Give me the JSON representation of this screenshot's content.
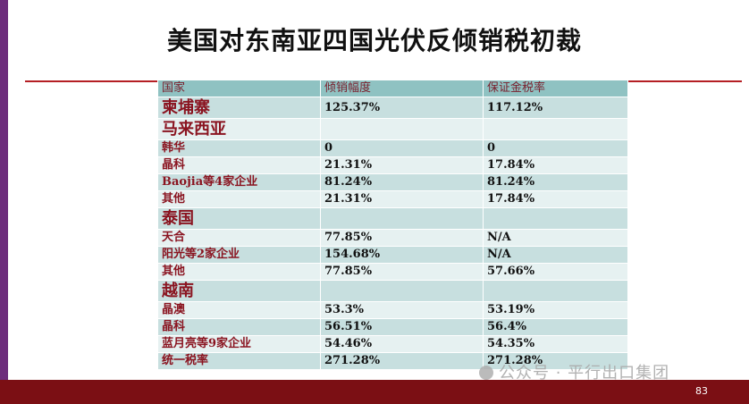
{
  "slide": {
    "title": "美国对东南亚四国光伏反倾销税初裁",
    "page_number": "83",
    "watermark": "公众号 · 平行出口集团"
  },
  "table": {
    "headers": [
      "国家",
      "倾销幅度",
      "保证金税率"
    ],
    "rows": [
      {
        "type": "country",
        "name": "柬埔寨",
        "margin": "125.37%",
        "rate": "117.12%"
      },
      {
        "type": "country",
        "name": "马来西亚",
        "margin": "",
        "rate": ""
      },
      {
        "type": "company",
        "name": "韩华",
        "margin": "0",
        "rate": "0"
      },
      {
        "type": "company",
        "name": "晶科",
        "margin": "21.31%",
        "rate": "17.84%"
      },
      {
        "type": "company",
        "name": "Baojia等4家企业",
        "margin": "81.24%",
        "rate": "81.24%"
      },
      {
        "type": "company",
        "name": "其他",
        "margin": "21.31%",
        "rate": "17.84%"
      },
      {
        "type": "country",
        "name": "泰国",
        "margin": "",
        "rate": ""
      },
      {
        "type": "company",
        "name": "天合",
        "margin": "77.85%",
        "rate": "N/A"
      },
      {
        "type": "company",
        "name": "阳光等2家企业",
        "margin": "154.68%",
        "rate": "N/A"
      },
      {
        "type": "company",
        "name": "其他",
        "margin": "77.85%",
        "rate": "57.66%"
      },
      {
        "type": "country",
        "name": "越南",
        "margin": "",
        "rate": ""
      },
      {
        "type": "company",
        "name": "晶澳",
        "margin": "53.3%",
        "rate": "53.19%"
      },
      {
        "type": "company",
        "name": "晶科",
        "margin": "56.51%",
        "rate": "56.4%"
      },
      {
        "type": "company",
        "name": "蓝月亮等9家企业",
        "margin": "54.46%",
        "rate": "54.35%"
      },
      {
        "type": "company",
        "name": "统一税率",
        "margin": "271.28%",
        "rate": "271.28%"
      }
    ]
  },
  "colors": {
    "accent_purple": "#6d2d7c",
    "accent_red": "#b51f24",
    "footer_red": "#7b0f14",
    "header_teal": "#8fc2c2",
    "row_teal_dark": "#c7dfdf",
    "row_teal_light": "#e6f1f1",
    "label_red": "#8a1420"
  }
}
